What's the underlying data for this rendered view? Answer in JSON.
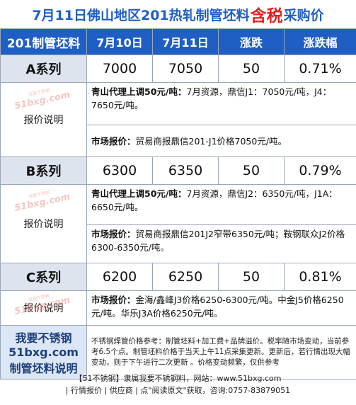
{
  "title": {
    "prefix": "7月11日佛山地区201热轧制管坯料",
    "highlight": "含税",
    "suffix": "采购价"
  },
  "header": {
    "col1": "201制管坯料",
    "col2": "7月10日",
    "col3": "7月11日",
    "col4": "涨跌",
    "col5": "涨跌幅"
  },
  "watermark": {
    "big": "51bxg.com",
    "small": "我要不锈钢"
  },
  "series": [
    {
      "name": "A系列",
      "d1": "7000",
      "d2": "7050",
      "change": "50",
      "pct": "0.71%",
      "label": "报价说明",
      "line1_bold": "青山代理上调50元/吨：",
      "line1_rest": "7月资源，鼎信J1：7050元/吨，J4：7650元/吨。",
      "line2_bold": "市场报价：",
      "line2_rest": "贸易商报鼎信201-J1价格7050元/吨。"
    },
    {
      "name": "B系列",
      "d1": "6300",
      "d2": "6350",
      "change": "50",
      "pct": "0.79%",
      "label": "报价说明",
      "line1_bold": "青山代理上调50元/吨：",
      "line1_rest": "7月资源，鼎信J2：6350元/吨，J1A：6650元/吨。",
      "line2_bold": "市场报价：",
      "line2_rest": "贸易商报鼎信201J2窄带6350元/吨；鞍钢联众J2价格6300-6350元/吨。"
    },
    {
      "name": "C系列",
      "d1": "6200",
      "d2": "6250",
      "change": "50",
      "pct": "0.81%",
      "label": "报价说明",
      "line1_bold": "市场报价：",
      "line1_rest": "金海/鑫峰J3价格6250-6300元/吨。中金J5价格6250元/吨。华乐J3A价格6250元/吨。"
    }
  ],
  "notes": {
    "label": "制管坯料说明",
    "text": "不锈钢焊管价格参考：制管坯料+加工费+品牌溢价。税率随市场变动，当前参考6.5个点。制管坯料价格于当天上午11点采集更新。更新后，若行情出现大幅变动，则于下午进行二次更新 。价格变动频繁，仅供参考"
  },
  "footer": {
    "line1": "【51不锈钢】隶属我要不锈钢料，网站：www.51bxg.com",
    "line2": "| 行情报价 | 供应商 | 点\"阅读原文\"获取，咨询:0757-83879051"
  }
}
